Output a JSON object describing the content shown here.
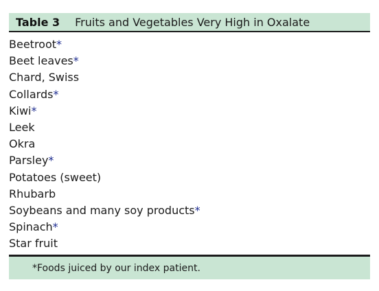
{
  "table": {
    "label": "Table 3",
    "title": "Fruits and Vegetables Very High in Oxalate",
    "items": [
      {
        "name": "Beetroot",
        "marker": "*"
      },
      {
        "name": "Beet leaves",
        "marker": "*"
      },
      {
        "name": "Chard, Swiss",
        "marker": ""
      },
      {
        "name": "Collards",
        "marker": "*"
      },
      {
        "name": "Kiwi",
        "marker": "*"
      },
      {
        "name": "Leek",
        "marker": ""
      },
      {
        "name": "Okra",
        "marker": ""
      },
      {
        "name": "Parsley",
        "marker": "*"
      },
      {
        "name": "Potatoes (sweet)",
        "marker": ""
      },
      {
        "name": "Rhubarb",
        "marker": ""
      },
      {
        "name": "Soybeans and many soy products",
        "marker": "*"
      },
      {
        "name": "Spinach",
        "marker": "*"
      },
      {
        "name": "Star fruit",
        "marker": ""
      }
    ],
    "footnote": "*Foods juiced by our index patient."
  },
  "colors": {
    "header_bg": "#c9e5d3",
    "marker": "#1c2b8f",
    "rule": "#1a1a1a"
  }
}
